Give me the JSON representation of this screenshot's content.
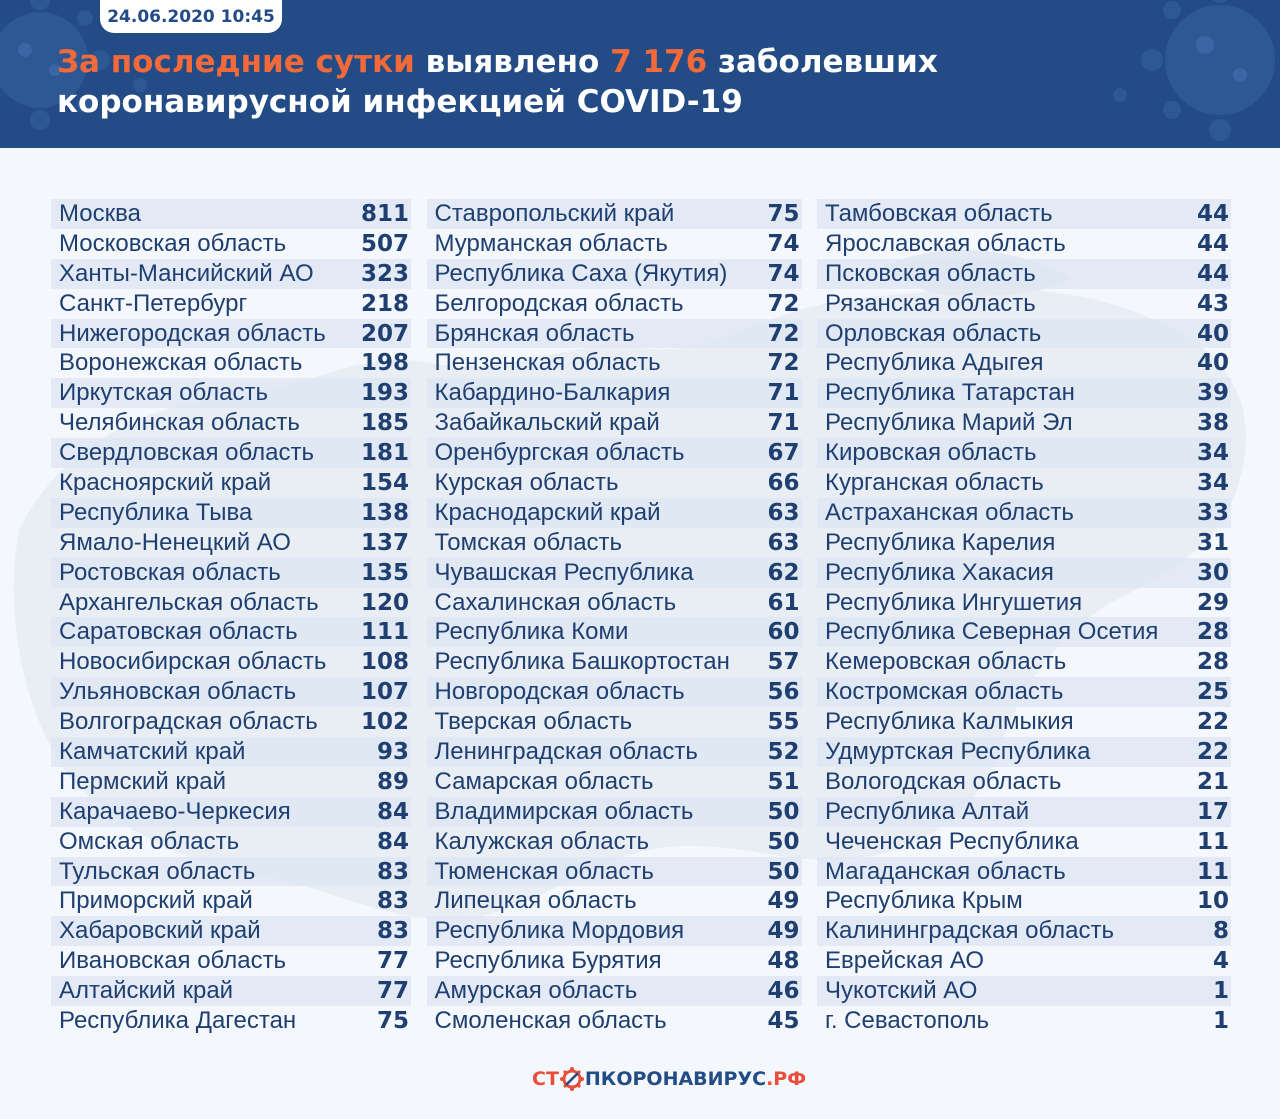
{
  "header": {
    "date": "24.06.2020 10:45",
    "headline_highlight": "За последние сутки",
    "headline_mid": " выявлено ",
    "headline_count": "7 176",
    "headline_end": " заболевших",
    "headline_line2": "коронавирусной инфекцией COVID-19"
  },
  "colors": {
    "header_bg": "#234b85",
    "accent": "#f26a3a",
    "text": "#1f3f70"
  },
  "columns": [
    [
      {
        "name": "Москва",
        "value": "811"
      },
      {
        "name": "Московская область",
        "value": "507"
      },
      {
        "name": "Ханты-Мансийский АО",
        "value": "323"
      },
      {
        "name": "Санкт-Петербург",
        "value": "218"
      },
      {
        "name": "Нижегородская область",
        "value": "207"
      },
      {
        "name": "Воронежская область",
        "value": "198"
      },
      {
        "name": "Иркутская область",
        "value": "193"
      },
      {
        "name": "Челябинская область",
        "value": "185"
      },
      {
        "name": "Свердловская область",
        "value": "181"
      },
      {
        "name": "Красноярский край",
        "value": "154"
      },
      {
        "name": "Республика Тыва",
        "value": "138"
      },
      {
        "name": "Ямало-Ненецкий АО",
        "value": "137"
      },
      {
        "name": "Ростовская область",
        "value": "135"
      },
      {
        "name": "Архангельская область",
        "value": "120"
      },
      {
        "name": "Саратовская область",
        "value": "111"
      },
      {
        "name": "Новосибирская область",
        "value": "108"
      },
      {
        "name": "Ульяновская область",
        "value": "107"
      },
      {
        "name": "Волгоградская область",
        "value": "102"
      },
      {
        "name": "Камчатский край",
        "value": "93"
      },
      {
        "name": "Пермский край",
        "value": "89"
      },
      {
        "name": "Карачаево-Черкесия",
        "value": "84"
      },
      {
        "name": "Омская область",
        "value": "84"
      },
      {
        "name": "Тульская область",
        "value": "83"
      },
      {
        "name": "Приморский край",
        "value": "83"
      },
      {
        "name": "Хабаровский край",
        "value": "83"
      },
      {
        "name": "Ивановская область",
        "value": "77"
      },
      {
        "name": "Алтайский край",
        "value": "77"
      },
      {
        "name": "Республика Дагестан",
        "value": "75"
      }
    ],
    [
      {
        "name": "Ставропольский край",
        "value": "75"
      },
      {
        "name": "Мурманская область",
        "value": "74"
      },
      {
        "name": "Республика Саха (Якутия)",
        "value": "74"
      },
      {
        "name": "Белгородская область",
        "value": "72"
      },
      {
        "name": "Брянская область",
        "value": "72"
      },
      {
        "name": "Пензенская область",
        "value": "72"
      },
      {
        "name": "Кабардино-Балкария",
        "value": "71"
      },
      {
        "name": "Забайкальский край",
        "value": "71"
      },
      {
        "name": "Оренбургская область",
        "value": "67"
      },
      {
        "name": "Курская область",
        "value": "66"
      },
      {
        "name": "Краснодарский край",
        "value": "63"
      },
      {
        "name": "Томская область",
        "value": "63"
      },
      {
        "name": "Чувашская Республика",
        "value": "62"
      },
      {
        "name": "Сахалинская область",
        "value": "61"
      },
      {
        "name": "Республика Коми",
        "value": "60"
      },
      {
        "name": "Республика Башкортостан",
        "value": "57"
      },
      {
        "name": "Новгородская область",
        "value": "56"
      },
      {
        "name": "Тверская область",
        "value": "55"
      },
      {
        "name": "Ленинградская область",
        "value": "52"
      },
      {
        "name": "Самарская область",
        "value": "51"
      },
      {
        "name": "Владимирская область",
        "value": "50"
      },
      {
        "name": "Калужская область",
        "value": "50"
      },
      {
        "name": "Тюменская область",
        "value": "50"
      },
      {
        "name": "Липецкая область",
        "value": "49"
      },
      {
        "name": "Республика Мордовия",
        "value": "49"
      },
      {
        "name": "Республика Бурятия",
        "value": "48"
      },
      {
        "name": "Амурская область",
        "value": "46"
      },
      {
        "name": "Смоленская область",
        "value": "45"
      }
    ],
    [
      {
        "name": "Тамбовская область",
        "value": "44"
      },
      {
        "name": "Ярославская область",
        "value": "44"
      },
      {
        "name": "Псковская область",
        "value": "44"
      },
      {
        "name": "Рязанская область",
        "value": "43"
      },
      {
        "name": "Орловская область",
        "value": "40"
      },
      {
        "name": "Республика Адыгея",
        "value": "40"
      },
      {
        "name": "Республика Татарстан",
        "value": "39"
      },
      {
        "name": "Республика Марий Эл",
        "value": "38"
      },
      {
        "name": "Кировская область",
        "value": "34"
      },
      {
        "name": "Курганская область",
        "value": "34"
      },
      {
        "name": "Астраханская область",
        "value": "33"
      },
      {
        "name": "Республика Карелия",
        "value": "31"
      },
      {
        "name": "Республика Хакасия",
        "value": "30"
      },
      {
        "name": "Республика Ингушетия",
        "value": "29"
      },
      {
        "name": "Республика Северная Осетия",
        "value": "28"
      },
      {
        "name": "Кемеровская область",
        "value": "28"
      },
      {
        "name": "Костромская область",
        "value": "25"
      },
      {
        "name": "Республика Калмыкия",
        "value": "22"
      },
      {
        "name": "Удмуртская Республика",
        "value": "22"
      },
      {
        "name": "Вологодская область",
        "value": "21"
      },
      {
        "name": "Республика Алтай",
        "value": "17"
      },
      {
        "name": "Чеченская Республика",
        "value": "11"
      },
      {
        "name": "Магаданская область",
        "value": "11"
      },
      {
        "name": "Республика Крым",
        "value": "10"
      },
      {
        "name": "Калининградская область",
        "value": "8"
      },
      {
        "name": "Еврейская АО",
        "value": "4"
      },
      {
        "name": "Чукотский АО",
        "value": "1"
      },
      {
        "name": "г. Севастополь",
        "value": "1"
      }
    ]
  ],
  "logo": {
    "part1": "СТ",
    "part2": "ПКОРОНАВИРУС",
    "part3": ".РФ"
  }
}
